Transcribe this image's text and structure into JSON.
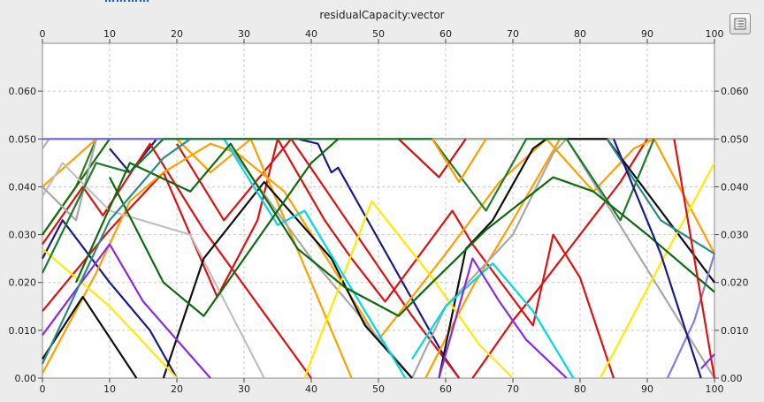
{
  "top_stub_text": "…………",
  "chart_data": {
    "type": "line",
    "title": "residualCapacity:vector",
    "xlim": [
      0,
      100
    ],
    "ylim": [
      0,
      0.07
    ],
    "x_ticks": [
      0,
      10,
      20,
      30,
      40,
      50,
      60,
      70,
      80,
      90,
      100
    ],
    "y_ticks": [
      "0.00",
      "0.010",
      "0.020",
      "0.030",
      "0.040",
      "0.050",
      "0.060"
    ],
    "y_tick_values": [
      0,
      0.01,
      0.02,
      0.03,
      0.04,
      0.05,
      0.06
    ],
    "grid": true,
    "legend": "none",
    "series": [
      {
        "color": "#2e7d1e",
        "points": [
          [
            0,
            0.03
          ],
          [
            5,
            0.04
          ],
          [
            8,
            0.05
          ],
          [
            100,
            0.05
          ]
        ]
      },
      {
        "color": "#1a6a0a",
        "points": [
          [
            0,
            0.03
          ],
          [
            10,
            0.05
          ],
          [
            20,
            0.05
          ],
          [
            20.5,
            0.05
          ],
          [
            30,
            0.05
          ],
          [
            40,
            0.05
          ],
          [
            60,
            0.05
          ],
          [
            75,
            0.05
          ],
          [
            85,
            0.05
          ]
        ]
      },
      {
        "color": "#b0b0b0",
        "points": [
          [
            0,
            0.048
          ],
          [
            1,
            0.05
          ],
          [
            100,
            0.05
          ]
        ]
      },
      {
        "color": "#1a1a8a",
        "points": [
          [
            0,
            0.025
          ],
          [
            3,
            0.033
          ],
          [
            10,
            0.02
          ],
          [
            16,
            0.01
          ],
          [
            20,
            0.0
          ]
        ]
      },
      {
        "color": "#1a1a8a",
        "points": [
          [
            10,
            0.048
          ],
          [
            13,
            0.043
          ],
          [
            17,
            0.05
          ],
          [
            30,
            0.05
          ],
          [
            38,
            0.05
          ],
          [
            41,
            0.049
          ],
          [
            43,
            0.043
          ],
          [
            44,
            0.044
          ],
          [
            60,
            0.004
          ],
          [
            62,
            0.0
          ]
        ]
      },
      {
        "color": "#dd1111",
        "points": [
          [
            0,
            0.014
          ],
          [
            10,
            0.031
          ],
          [
            18,
            0.043
          ],
          [
            26,
            0.017
          ],
          [
            32,
            0.033
          ],
          [
            35,
            0.05
          ],
          [
            42,
            0.033
          ],
          [
            46,
            0.025
          ],
          [
            51,
            0.016
          ],
          [
            61,
            0.035
          ],
          [
            64,
            0.028
          ],
          [
            73,
            0.011
          ],
          [
            76,
            0.03
          ],
          [
            80,
            0.021
          ],
          [
            85,
            0.0
          ]
        ]
      },
      {
        "color": "#dd1111",
        "points": [
          [
            0,
            0.028
          ],
          [
            6,
            0.04
          ],
          [
            9,
            0.034
          ],
          [
            16,
            0.049
          ],
          [
            24,
            0.031
          ],
          [
            40,
            0.0
          ]
        ]
      },
      {
        "color": "#dd1111",
        "points": [
          [
            20,
            0.049
          ],
          [
            27,
            0.033
          ],
          [
            37,
            0.05
          ],
          [
            55,
            0.013
          ],
          [
            62,
            0.0
          ]
        ]
      },
      {
        "color": "#dd1111",
        "points": [
          [
            64,
            0.0
          ],
          [
            70,
            0.012
          ],
          [
            74,
            0.019
          ],
          [
            80,
            0.03
          ],
          [
            86,
            0.041
          ],
          [
            90,
            0.05
          ]
        ]
      },
      {
        "color": "#ff9f00",
        "points": [
          [
            0,
            0.001
          ],
          [
            8,
            0.022
          ],
          [
            13,
            0.037
          ],
          [
            18,
            0.043
          ],
          [
            25,
            0.049
          ],
          [
            29,
            0.047
          ],
          [
            36,
            0.039
          ],
          [
            50,
            0.008
          ],
          [
            55,
            0.017
          ],
          [
            60,
            0.026
          ],
          [
            68,
            0.041
          ],
          [
            75,
            0.05
          ],
          [
            82,
            0.039
          ],
          [
            88,
            0.048
          ],
          [
            91,
            0.05
          ],
          [
            100,
            0.026
          ]
        ]
      },
      {
        "color": "#ff9f00",
        "points": [
          [
            0,
            0.04
          ],
          [
            8,
            0.05
          ],
          [
            20,
            0.05
          ],
          [
            25,
            0.043
          ],
          [
            31,
            0.05
          ],
          [
            46,
            0.0
          ]
        ]
      },
      {
        "color": "#ff9f00",
        "points": [
          [
            57,
            0.0
          ],
          [
            61,
            0.011
          ],
          [
            64,
            0.019
          ],
          [
            70,
            0.033
          ],
          [
            77,
            0.05
          ]
        ]
      },
      {
        "color": "#c0c0c0",
        "points": [
          [
            0,
            0.038
          ],
          [
            3,
            0.045
          ],
          [
            10,
            0.035
          ],
          [
            22,
            0.03
          ],
          [
            33,
            0.0
          ]
        ]
      },
      {
        "color": "#a8a8a8",
        "points": [
          [
            0,
            0.04
          ],
          [
            5,
            0.033
          ],
          [
            8,
            0.05
          ],
          [
            27,
            0.05
          ],
          [
            40,
            0.025
          ],
          [
            55,
            0.0
          ]
        ]
      },
      {
        "color": "#a8a8a8",
        "points": [
          [
            55,
            0.0
          ],
          [
            60,
            0.015
          ],
          [
            70,
            0.03
          ],
          [
            76,
            0.047
          ],
          [
            78,
            0.05
          ],
          [
            100,
            0.0
          ]
        ]
      },
      {
        "color": "#111111",
        "points": [
          [
            0,
            0.004
          ],
          [
            6,
            0.017
          ],
          [
            14,
            0.0
          ]
        ]
      },
      {
        "color": "#111111",
        "points": [
          [
            18,
            0.0
          ],
          [
            24,
            0.025
          ],
          [
            33,
            0.041
          ],
          [
            43,
            0.025
          ],
          [
            48,
            0.011
          ],
          [
            55,
            0.0
          ]
        ]
      },
      {
        "color": "#111111",
        "points": [
          [
            59,
            0.0
          ],
          [
            63,
            0.027
          ],
          [
            67,
            0.033
          ],
          [
            73,
            0.048
          ],
          [
            75,
            0.05
          ],
          [
            84,
            0.05
          ],
          [
            100,
            0.02
          ]
        ]
      },
      {
        "color": "#ffea00",
        "points": [
          [
            0,
            0.027
          ],
          [
            10,
            0.015
          ],
          [
            20,
            0.0
          ]
        ]
      },
      {
        "color": "#ffea00",
        "points": [
          [
            39,
            0.0
          ],
          [
            49,
            0.037
          ],
          [
            58,
            0.021
          ],
          [
            65,
            0.007
          ],
          [
            70,
            0.0
          ]
        ]
      },
      {
        "color": "#ffea00",
        "points": [
          [
            83,
            0.0
          ],
          [
            92,
            0.024
          ],
          [
            100,
            0.045
          ]
        ]
      },
      {
        "color": "#00d8e8",
        "points": [
          [
            27,
            0.05
          ],
          [
            35,
            0.032
          ],
          [
            39,
            0.035
          ],
          [
            54,
            0.0
          ]
        ]
      },
      {
        "color": "#00d8e8",
        "points": [
          [
            55,
            0.004
          ],
          [
            60,
            0.015
          ],
          [
            67,
            0.024
          ],
          [
            73,
            0.014
          ],
          [
            79,
            0.0
          ]
        ]
      },
      {
        "color": "#8a2be2",
        "points": [
          [
            0,
            0.009
          ],
          [
            10,
            0.028
          ],
          [
            15,
            0.016
          ],
          [
            25,
            0.0
          ]
        ]
      },
      {
        "color": "#8a2be2",
        "points": [
          [
            59,
            0.0
          ],
          [
            64,
            0.025
          ],
          [
            68,
            0.016
          ],
          [
            72,
            0.008
          ],
          [
            78,
            0.0
          ]
        ]
      },
      {
        "color": "#6a6ae8",
        "points": [
          [
            0,
            0.05
          ],
          [
            5,
            0.05
          ],
          [
            15,
            0.05
          ],
          [
            20,
            0.05
          ],
          [
            27,
            0.05
          ]
        ]
      },
      {
        "color": "#8080e0",
        "points": [
          [
            93,
            0.0
          ],
          [
            97,
            0.012
          ],
          [
            100,
            0.026
          ]
        ]
      },
      {
        "color": "#1b7a2b",
        "points": [
          [
            0,
            0.022
          ],
          [
            8,
            0.045
          ],
          [
            13,
            0.043
          ],
          [
            18,
            0.05
          ],
          [
            30,
            0.05
          ],
          [
            45,
            0.05
          ],
          [
            58,
            0.05
          ],
          [
            66,
            0.035
          ],
          [
            72,
            0.05
          ],
          [
            78,
            0.05
          ],
          [
            86,
            0.033
          ],
          [
            91,
            0.05
          ]
        ]
      },
      {
        "color": "#0f6a0f",
        "points": [
          [
            5,
            0.02
          ],
          [
            13,
            0.045
          ],
          [
            22,
            0.039
          ],
          [
            28,
            0.049
          ],
          [
            38,
            0.027
          ],
          [
            45,
            0.019
          ],
          [
            53,
            0.013
          ],
          [
            58,
            0.02
          ],
          [
            66,
            0.031
          ],
          [
            76,
            0.042
          ],
          [
            82,
            0.039
          ],
          [
            90,
            0.03
          ],
          [
            100,
            0.018
          ]
        ]
      },
      {
        "color": "#0f6a0f",
        "points": [
          [
            10,
            0.042
          ],
          [
            18,
            0.02
          ],
          [
            24,
            0.013
          ],
          [
            32,
            0.029
          ],
          [
            40,
            0.045
          ],
          [
            44,
            0.05
          ]
        ]
      },
      {
        "color": "#2a8a8a",
        "points": [
          [
            0,
            0.003
          ],
          [
            5,
            0.018
          ],
          [
            10,
            0.033
          ],
          [
            18,
            0.046
          ],
          [
            22,
            0.05
          ]
        ]
      },
      {
        "color": "#2a8a8a",
        "points": [
          [
            84,
            0.05
          ],
          [
            92,
            0.033
          ],
          [
            100,
            0.026
          ]
        ]
      },
      {
        "color": "#1a1a8a",
        "points": [
          [
            85,
            0.05
          ],
          [
            92,
            0.026
          ],
          [
            98,
            0.0
          ]
        ]
      },
      {
        "color": "#dd1111",
        "points": [
          [
            94,
            0.05
          ],
          [
            100,
            0.0
          ]
        ]
      },
      {
        "color": "#8a2be2",
        "points": [
          [
            98,
            0.002
          ],
          [
            100,
            0.005
          ]
        ]
      },
      {
        "color": "#cc1111",
        "points": [
          [
            53,
            0.05
          ],
          [
            59,
            0.042
          ],
          [
            63,
            0.05
          ]
        ]
      },
      {
        "color": "#ff9f00",
        "points": [
          [
            58,
            0.05
          ],
          [
            62,
            0.041
          ],
          [
            66,
            0.05
          ]
        ]
      }
    ]
  }
}
